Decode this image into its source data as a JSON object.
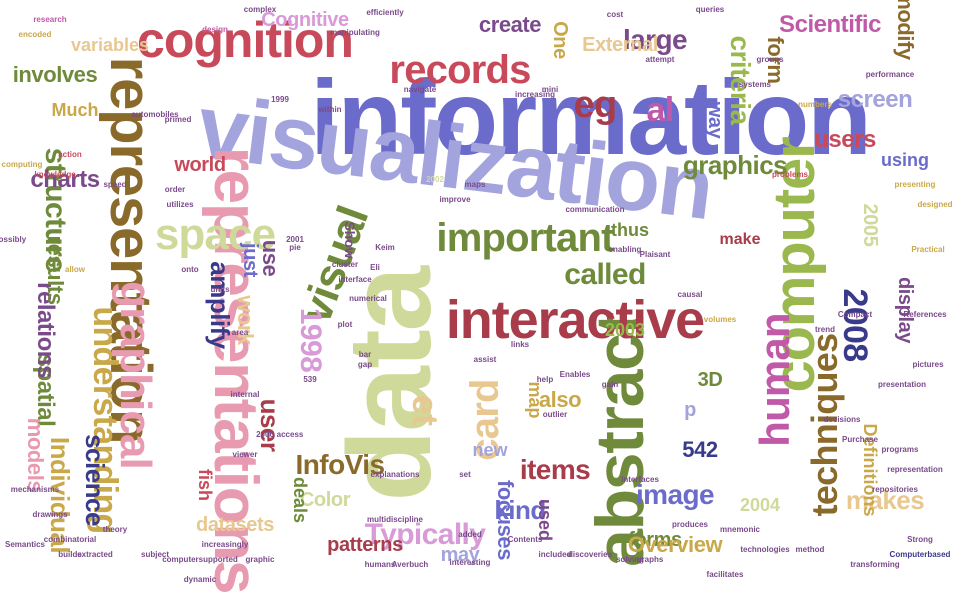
{
  "palette": {
    "blue": "#6b6bcc",
    "lavender": "#a3a3dd",
    "olive": "#6e8a3a",
    "green": "#9bb84e",
    "sage": "#cfd99a",
    "red": "#a83c4a",
    "crimson": "#c84a5a",
    "pink": "#e89ab0",
    "magenta": "#c05aa8",
    "orchid": "#d99ad8",
    "purple": "#7a4a8a",
    "gold": "#c9a84a",
    "tan": "#e8c890",
    "brown": "#8a6a2a",
    "navy": "#3a3a8a",
    "teal": "#5a9a9a"
  },
  "words": [
    {
      "text": "information",
      "color": "blue"
    },
    {
      "text": "visualization",
      "color": "lavender"
    },
    {
      "text": "data",
      "color": "sage"
    },
    {
      "text": "abstract",
      "color": "olive"
    },
    {
      "text": "representations",
      "color": "pink"
    },
    {
      "text": "representation",
      "color": "brown"
    },
    {
      "text": "computer",
      "color": "green"
    },
    {
      "text": "interactive",
      "color": "red"
    },
    {
      "text": "cognition",
      "color": "crimson"
    },
    {
      "text": "visual",
      "color": "olive"
    },
    {
      "text": "graphical",
      "color": "pink"
    },
    {
      "text": "records",
      "color": "crimson"
    },
    {
      "text": "space",
      "color": "sage"
    },
    {
      "text": "card",
      "color": "tan"
    },
    {
      "text": "human",
      "color": "magenta"
    },
    {
      "text": "techniques",
      "color": "brown"
    },
    {
      "text": "important",
      "color": "olive"
    },
    {
      "text": "Scientific",
      "color": "magenta"
    },
    {
      "text": "criteria",
      "color": "green"
    },
    {
      "text": "graphics",
      "color": "olive"
    },
    {
      "text": "amplify",
      "color": "navy"
    },
    {
      "text": "use",
      "color": "purple"
    },
    {
      "text": "eg",
      "color": "red"
    },
    {
      "text": "al",
      "color": "magenta"
    },
    {
      "text": "et",
      "color": "tan"
    },
    {
      "text": "understanding",
      "color": "gold"
    },
    {
      "text": "structure",
      "color": "olive"
    },
    {
      "text": "screen",
      "color": "lavender"
    },
    {
      "text": "2008",
      "color": "navy"
    },
    {
      "text": "1998",
      "color": "orchid"
    },
    {
      "text": "called",
      "color": "olive"
    },
    {
      "text": "InfoVis",
      "color": "brown"
    },
    {
      "text": "image",
      "color": "blue"
    },
    {
      "text": "items",
      "color": "red"
    },
    {
      "text": "Typically",
      "color": "orchid"
    },
    {
      "text": "kind",
      "color": "blue"
    },
    {
      "text": "large",
      "color": "purple"
    },
    {
      "text": "users",
      "color": "crimson"
    },
    {
      "text": "form",
      "color": "brown"
    },
    {
      "text": "user",
      "color": "red"
    },
    {
      "text": "work",
      "color": "tan"
    },
    {
      "text": "science",
      "color": "navy"
    },
    {
      "text": "Individual",
      "color": "gold"
    },
    {
      "text": "spatial",
      "color": "olive"
    },
    {
      "text": "relations",
      "color": "purple"
    },
    {
      "text": "results",
      "color": "olive"
    },
    {
      "text": "models",
      "color": "pink"
    },
    {
      "text": "charts",
      "color": "purple"
    },
    {
      "text": "world",
      "color": "crimson"
    },
    {
      "text": "Much",
      "color": "gold"
    },
    {
      "text": "involves",
      "color": "olive"
    },
    {
      "text": "variables",
      "color": "tan"
    },
    {
      "text": "Cognitive",
      "color": "orchid"
    },
    {
      "text": "External",
      "color": "tan"
    },
    {
      "text": "create",
      "color": "purple"
    },
    {
      "text": "One",
      "color": "gold"
    },
    {
      "text": "way",
      "color": "blue"
    },
    {
      "text": "modify",
      "color": "brown"
    },
    {
      "text": "display",
      "color": "purple"
    },
    {
      "text": "2005",
      "color": "sage"
    },
    {
      "text": "using",
      "color": "blue"
    },
    {
      "text": "make",
      "color": "red"
    },
    {
      "text": "thus",
      "color": "olive"
    },
    {
      "text": "2003",
      "color": "green"
    },
    {
      "text": "also",
      "color": "gold"
    },
    {
      "text": "map",
      "color": "gold"
    },
    {
      "text": "new",
      "color": "lavender"
    },
    {
      "text": "Color",
      "color": "sage"
    },
    {
      "text": "deals",
      "color": "olive"
    },
    {
      "text": "datasets",
      "color": "tan"
    },
    {
      "text": "patterns",
      "color": "red"
    },
    {
      "text": "may",
      "color": "lavender"
    },
    {
      "text": "focuses",
      "color": "blue"
    },
    {
      "text": "used",
      "color": "purple"
    },
    {
      "text": "forms",
      "color": "olive"
    },
    {
      "text": "Overview",
      "color": "gold"
    },
    {
      "text": "2004",
      "color": "sage"
    },
    {
      "text": "makes",
      "color": "tan"
    },
    {
      "text": "Definitions",
      "color": "gold"
    },
    {
      "text": "3D",
      "color": "olive"
    },
    {
      "text": "542",
      "color": "navy"
    },
    {
      "text": "p",
      "color": "lavender"
    },
    {
      "text": "fish",
      "color": "crimson"
    },
    {
      "text": "just",
      "color": "blue"
    },
    {
      "text": "Show",
      "color": "purple"
    },
    {
      "text": "designed",
      "color": "gold"
    },
    {
      "text": "presenting",
      "color": "gold"
    },
    {
      "text": "performance",
      "color": "purple"
    },
    {
      "text": "systems",
      "color": "purple"
    },
    {
      "text": "groups",
      "color": "purple"
    },
    {
      "text": "queries",
      "color": "purple"
    },
    {
      "text": "cost",
      "color": "purple"
    },
    {
      "text": "efficiently",
      "color": "purple"
    },
    {
      "text": "manipulating",
      "color": "purple"
    },
    {
      "text": "complex",
      "color": "purple"
    },
    {
      "text": "design",
      "color": "magenta"
    },
    {
      "text": "research",
      "color": "magenta"
    },
    {
      "text": "encoded",
      "color": "gold"
    },
    {
      "text": "automobiles",
      "color": "purple"
    },
    {
      "text": "navigate",
      "color": "purple"
    },
    {
      "text": "attempt",
      "color": "purple"
    },
    {
      "text": "increasing",
      "color": "purple"
    },
    {
      "text": "mini",
      "color": "purple"
    },
    {
      "text": "primed",
      "color": "purple"
    },
    {
      "text": "within",
      "color": "purple"
    },
    {
      "text": "1999",
      "color": "purple"
    },
    {
      "text": "computing",
      "color": "gold"
    },
    {
      "text": "action",
      "color": "crimson"
    },
    {
      "text": "knowledge",
      "color": "crimson"
    },
    {
      "text": "speed",
      "color": "purple"
    },
    {
      "text": "order",
      "color": "purple"
    },
    {
      "text": "utilizes",
      "color": "purple"
    },
    {
      "text": "2002",
      "color": "sage"
    },
    {
      "text": "maps",
      "color": "purple"
    },
    {
      "text": "communication",
      "color": "purple"
    },
    {
      "text": "enabling",
      "color": "purple"
    },
    {
      "text": "numbers",
      "color": "gold"
    },
    {
      "text": "problems",
      "color": "crimson"
    },
    {
      "text": "improve",
      "color": "purple"
    },
    {
      "text": "Keim",
      "color": "purple"
    },
    {
      "text": "Plaisant",
      "color": "purple"
    },
    {
      "text": "pie",
      "color": "purple"
    },
    {
      "text": "2001",
      "color": "purple"
    },
    {
      "text": "cluster",
      "color": "purple"
    },
    {
      "text": "interface",
      "color": "purple"
    },
    {
      "text": "possibly",
      "color": "purple"
    },
    {
      "text": "allow",
      "color": "gold"
    },
    {
      "text": "onto",
      "color": "purple"
    },
    {
      "text": "Practical",
      "color": "gold"
    },
    {
      "text": "volumes",
      "color": "gold"
    },
    {
      "text": "References",
      "color": "purple"
    },
    {
      "text": "Compact",
      "color": "purple"
    },
    {
      "text": "trend",
      "color": "purple"
    },
    {
      "text": "pictures",
      "color": "purple"
    },
    {
      "text": "presentation",
      "color": "purple"
    },
    {
      "text": "decisions",
      "color": "purple"
    },
    {
      "text": "Purchase",
      "color": "purple"
    },
    {
      "text": "programs",
      "color": "purple"
    },
    {
      "text": "repositories",
      "color": "purple"
    },
    {
      "text": "representation",
      "color": "purple"
    },
    {
      "text": "Computerbased",
      "color": "navy"
    },
    {
      "text": "Strong",
      "color": "purple"
    },
    {
      "text": "transforming",
      "color": "purple"
    },
    {
      "text": "method",
      "color": "purple"
    },
    {
      "text": "technologies",
      "color": "purple"
    },
    {
      "text": "facilitates",
      "color": "purple"
    },
    {
      "text": "graphs",
      "color": "purple"
    },
    {
      "text": "discoveries",
      "color": "purple"
    },
    {
      "text": "interesting",
      "color": "purple"
    },
    {
      "text": "Averbuch",
      "color": "purple"
    },
    {
      "text": "humans",
      "color": "purple"
    },
    {
      "text": "graphic",
      "color": "purple"
    },
    {
      "text": "increasingly",
      "color": "purple"
    },
    {
      "text": "computersupported",
      "color": "purple"
    },
    {
      "text": "dynamic",
      "color": "purple"
    },
    {
      "text": "subject",
      "color": "purple"
    },
    {
      "text": "extracted",
      "color": "purple"
    },
    {
      "text": "builds",
      "color": "purple"
    },
    {
      "text": "Semantics",
      "color": "purple"
    },
    {
      "text": "theory",
      "color": "purple"
    },
    {
      "text": "combinatorial",
      "color": "purple"
    },
    {
      "text": "drawings",
      "color": "purple"
    },
    {
      "text": "mechanisms",
      "color": "purple"
    },
    {
      "text": "explanations",
      "color": "purple"
    },
    {
      "text": "multidiscipline",
      "color": "purple"
    },
    {
      "text": "set",
      "color": "purple"
    },
    {
      "text": "added",
      "color": "purple"
    },
    {
      "text": "Contents",
      "color": "purple"
    },
    {
      "text": "included",
      "color": "purple"
    },
    {
      "text": "solving",
      "color": "purple"
    },
    {
      "text": "mnemonic",
      "color": "purple"
    },
    {
      "text": "produces",
      "color": "purple"
    },
    {
      "text": "interfaces",
      "color": "purple"
    },
    {
      "text": "outlier",
      "color": "purple"
    },
    {
      "text": "help",
      "color": "purple"
    },
    {
      "text": "gain",
      "color": "purple"
    },
    {
      "text": "Enables",
      "color": "purple"
    },
    {
      "text": "links",
      "color": "purple"
    },
    {
      "text": "assist",
      "color": "purple"
    },
    {
      "text": "plot",
      "color": "purple"
    },
    {
      "text": "bar",
      "color": "purple"
    },
    {
      "text": "gap",
      "color": "purple"
    },
    {
      "text": "539",
      "color": "purple"
    },
    {
      "text": "internal",
      "color": "purple"
    },
    {
      "text": "2006",
      "color": "purple"
    },
    {
      "text": "viewer",
      "color": "purple"
    },
    {
      "text": "access",
      "color": "purple"
    },
    {
      "text": "area",
      "color": "purple"
    },
    {
      "text": "numerical",
      "color": "purple"
    },
    {
      "text": "causal",
      "color": "purple"
    },
    {
      "text": "Eli",
      "color": "purple"
    },
    {
      "text": "units",
      "color": "purple"
    },
    {
      "text": "56",
      "color": "purple"
    },
    {
      "text": "far",
      "color": "purple"
    },
    {
      "text": "Ser",
      "color": "purple"
    },
    {
      "text": "promises",
      "color": "purple"
    }
  ]
}
